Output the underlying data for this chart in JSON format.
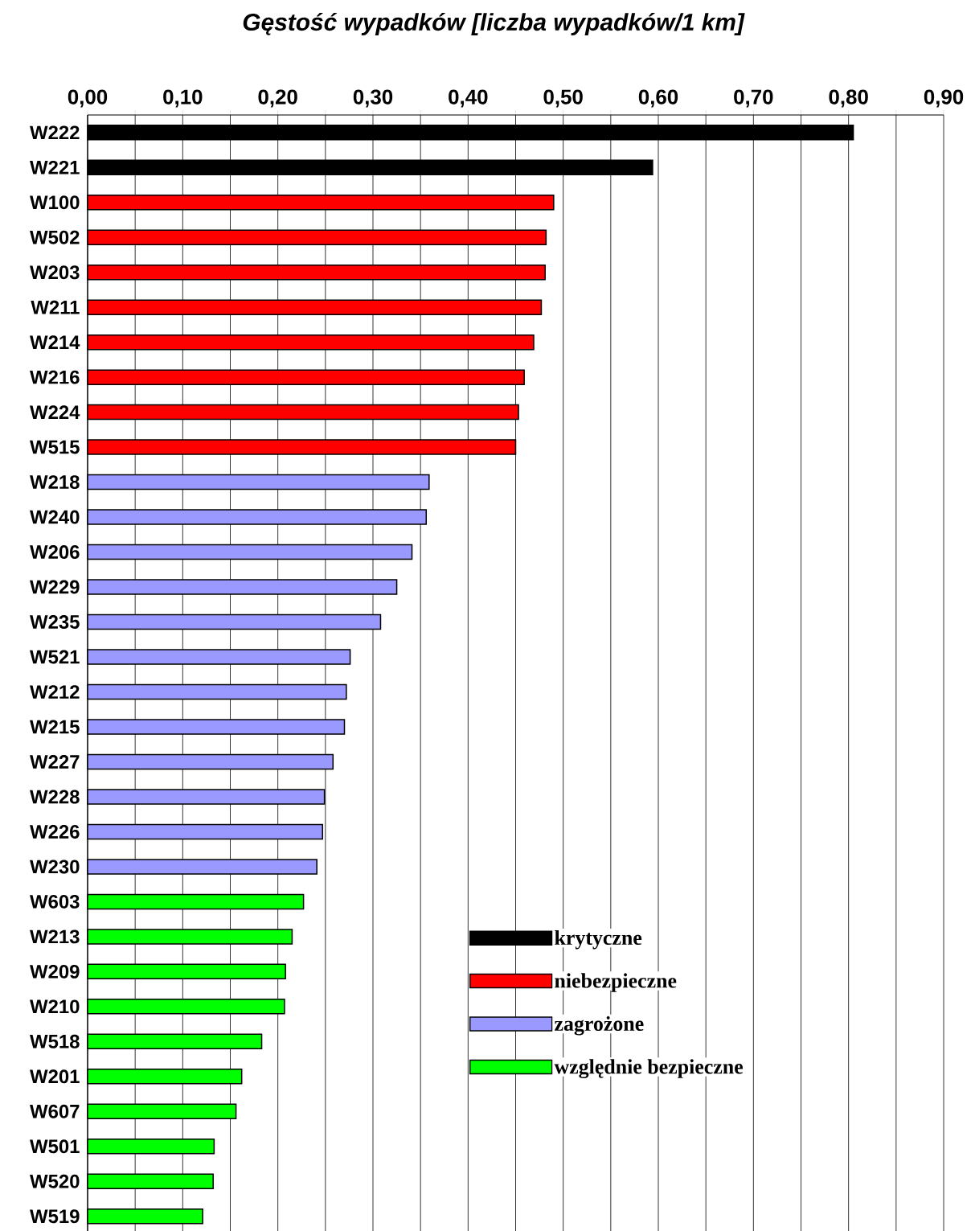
{
  "chart_data": {
    "type": "bar",
    "orientation": "horizontal",
    "title": "*Gęstość wypadków [liczba wypadków/1 km]*",
    "categories": [
      "W222",
      "W221",
      "W100",
      "W502",
      "W203",
      "W211",
      "W214",
      "W216",
      "W224",
      "W515",
      "W218",
      "W240",
      "W206",
      "W229",
      "W235",
      "W521",
      "W212",
      "W215",
      "W227",
      "W228",
      "W226",
      "W230",
      "W603",
      "W213",
      "W209",
      "W210",
      "W518",
      "W201",
      "W607",
      "W501",
      "W520",
      "W519"
    ],
    "series": [
      {
        "name": "krytyczne",
        "color": "#000000",
        "values": [
          0.805,
          0.594,
          null,
          null,
          null,
          null,
          null,
          null,
          null,
          null,
          null,
          null,
          null,
          null,
          null,
          null,
          null,
          null,
          null,
          null,
          null,
          null,
          null,
          null,
          null,
          null,
          null,
          null,
          null,
          null,
          null,
          null
        ]
      },
      {
        "name": "niebezpieczne",
        "color": "#ff0000",
        "values": [
          null,
          null,
          0.49,
          0.482,
          0.481,
          0.477,
          0.469,
          0.459,
          0.453,
          0.45,
          null,
          null,
          null,
          null,
          null,
          null,
          null,
          null,
          null,
          null,
          null,
          null,
          null,
          null,
          null,
          null,
          null,
          null,
          null,
          null,
          null,
          null
        ]
      },
      {
        "name": "zagrożone",
        "color": "#9999ff",
        "values": [
          null,
          null,
          null,
          null,
          null,
          null,
          null,
          null,
          null,
          null,
          0.359,
          0.356,
          0.341,
          0.325,
          0.308,
          0.276,
          0.272,
          0.27,
          0.258,
          0.249,
          0.247,
          0.241,
          null,
          null,
          null,
          null,
          null,
          null,
          null,
          null,
          null,
          null
        ]
      },
      {
        "name": "względnie bezpieczne",
        "color": "#00ff00",
        "values": [
          null,
          null,
          null,
          null,
          null,
          null,
          null,
          null,
          null,
          null,
          null,
          null,
          null,
          null,
          null,
          null,
          null,
          null,
          null,
          null,
          null,
          null,
          0.227,
          0.215,
          0.208,
          0.207,
          0.183,
          0.162,
          0.156,
          0.133,
          0.132,
          0.121
        ]
      }
    ],
    "xlim": [
      0,
      0.9
    ],
    "xticks": [
      {
        "value": 0,
        "label": "0,00"
      },
      {
        "value": 0.05,
        "label": null
      },
      {
        "value": 0.1,
        "label": "0,10"
      },
      {
        "value": 0.15,
        "label": null
      },
      {
        "value": 0.2,
        "label": "0,20"
      },
      {
        "value": 0.25,
        "label": null
      },
      {
        "value": 0.3,
        "label": "0,30"
      },
      {
        "value": 0.35,
        "label": null
      },
      {
        "value": 0.4,
        "label": "0,40"
      },
      {
        "value": 0.45,
        "label": null
      },
      {
        "value": 0.5,
        "label": "0,50"
      },
      {
        "value": 0.55,
        "label": null
      },
      {
        "value": 0.6,
        "label": "0,60"
      },
      {
        "value": 0.65,
        "label": null
      },
      {
        "value": 0.7,
        "label": "0,70"
      },
      {
        "value": 0.75,
        "label": null
      },
      {
        "value": 0.8,
        "label": "0,80"
      },
      {
        "value": 0.85,
        "label": null
      },
      {
        "value": 0.9,
        "label": "0,90"
      }
    ],
    "grid": "x",
    "legend": "bottom right"
  }
}
